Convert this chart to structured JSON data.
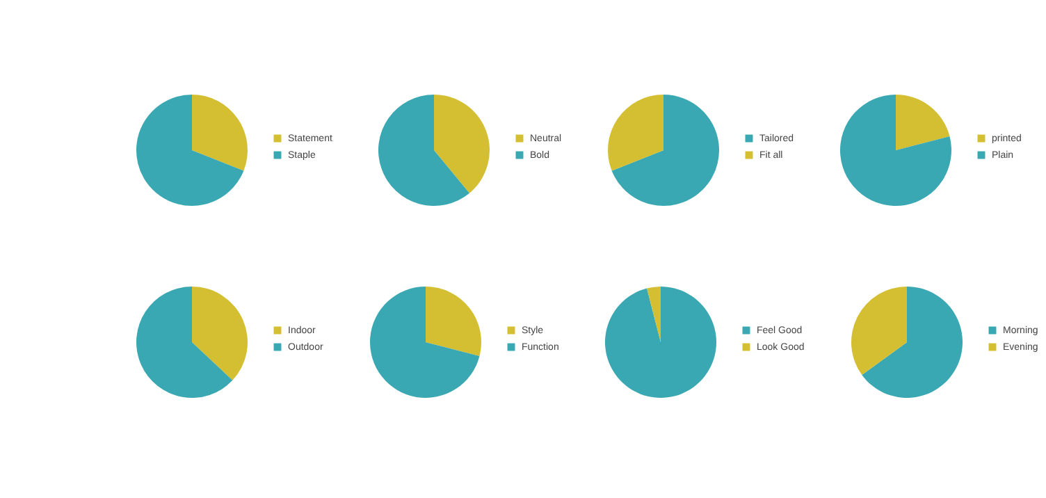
{
  "chart_data": [
    {
      "type": "pie",
      "categories": [
        "Statement",
        "Staple"
      ],
      "values": [
        31,
        69
      ],
      "colors": [
        "#d4bf32",
        "#3aa8b2"
      ],
      "legend": "right"
    },
    {
      "type": "pie",
      "categories": [
        "Neutral",
        "Bold"
      ],
      "values": [
        39,
        61
      ],
      "colors": [
        "#d4bf32",
        "#3aa8b2"
      ],
      "legend": "right"
    },
    {
      "type": "pie",
      "categories": [
        "Tailored",
        "Fit all"
      ],
      "values": [
        69,
        31
      ],
      "colors": [
        "#3aa8b2",
        "#d4bf32"
      ],
      "legend": "right"
    },
    {
      "type": "pie",
      "categories": [
        "printed",
        "Plain"
      ],
      "values": [
        21,
        79
      ],
      "colors": [
        "#d4bf32",
        "#3aa8b2"
      ],
      "legend": "right"
    },
    {
      "type": "pie",
      "categories": [
        "Indoor",
        "Outdoor"
      ],
      "values": [
        37,
        63
      ],
      "colors": [
        "#d4bf32",
        "#3aa8b2"
      ],
      "legend": "right"
    },
    {
      "type": "pie",
      "categories": [
        "Style",
        "Function"
      ],
      "values": [
        29,
        71
      ],
      "colors": [
        "#d4bf32",
        "#3aa8b2"
      ],
      "legend": "right"
    },
    {
      "type": "pie",
      "categories": [
        "Feel Good",
        "Look Good"
      ],
      "values": [
        96,
        4
      ],
      "colors": [
        "#3aa8b2",
        "#d4bf32"
      ],
      "legend": "right"
    },
    {
      "type": "pie",
      "categories": [
        "Morning",
        "Evening"
      ],
      "values": [
        65,
        35
      ],
      "colors": [
        "#3aa8b2",
        "#d4bf32"
      ],
      "legend": "right"
    }
  ]
}
